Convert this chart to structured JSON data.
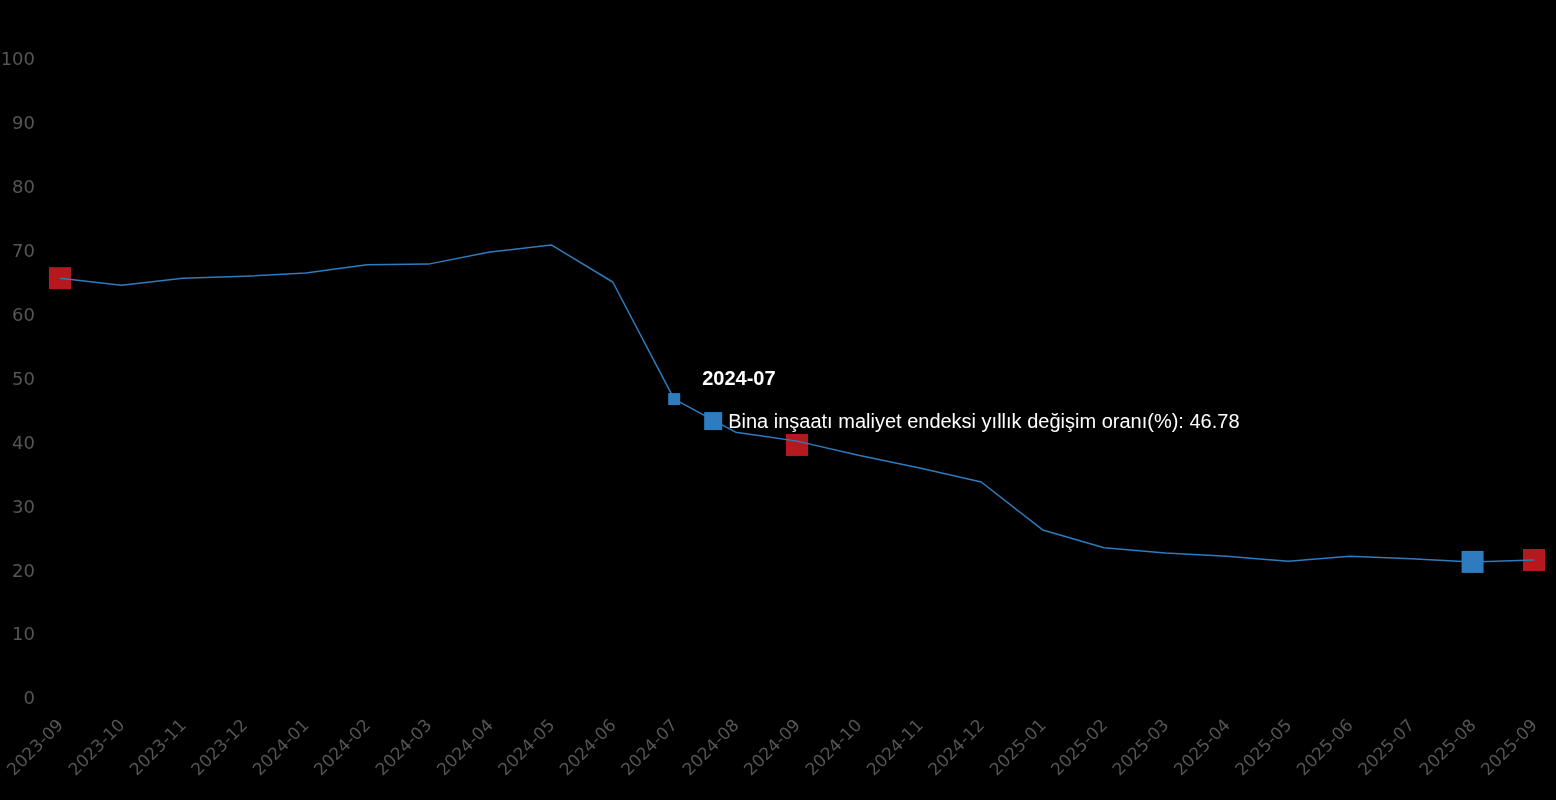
{
  "chart_data": {
    "type": "line",
    "categories": [
      "2023-09",
      "2023-10",
      "2023-11",
      "2023-12",
      "2024-01",
      "2024-02",
      "2024-03",
      "2024-04",
      "2024-05",
      "2024-06",
      "2024-07",
      "2024-08",
      "2024-09",
      "2024-10",
      "2024-11",
      "2024-12",
      "2025-01",
      "2025-02",
      "2025-03",
      "2025-04",
      "2025-05",
      "2025-06",
      "2025-07",
      "2025-08",
      "2025-09"
    ],
    "series": [
      {
        "type": "scatter",
        "marker": "square",
        "colors": [
          "#b5191e",
          null,
          null,
          null,
          null,
          null,
          null,
          null,
          null,
          null,
          null,
          null,
          "#b5191e",
          null,
          null,
          null,
          null,
          null,
          null,
          null,
          null,
          null,
          null,
          "#2e7cbd",
          "#b5191e"
        ],
        "values": [
          65.7,
          null,
          null,
          null,
          null,
          null,
          null,
          null,
          null,
          null,
          null,
          null,
          39.6,
          null,
          null,
          null,
          null,
          null,
          null,
          null,
          null,
          null,
          null,
          21.3,
          21.6
        ]
      },
      {
        "color": "#2e7cbd",
        "values": [
          65.7,
          64.6,
          65.7,
          66.0,
          66.5,
          67.8,
          67.9,
          69.8,
          70.9,
          65.1,
          46.78,
          41.6,
          40.2,
          38.0,
          36.0,
          33.8,
          26.3,
          23.5,
          22.7,
          22.2,
          21.4,
          22.2,
          21.8,
          21.3,
          21.6
        ]
      }
    ],
    "ylim": [
      0,
      100
    ],
    "yticks": [
      0,
      10,
      20,
      30,
      40,
      50,
      60,
      70,
      80,
      90,
      100
    ],
    "grid": false,
    "line_style": "solid",
    "annotations": [
      {
        "text": "2024-07",
        "x": "2024-07",
        "y": 46.78
      },
      "Bina inşaatı maliyet endeksi yıllık değişim oranı(%): 46.78"
    ]
  }
}
